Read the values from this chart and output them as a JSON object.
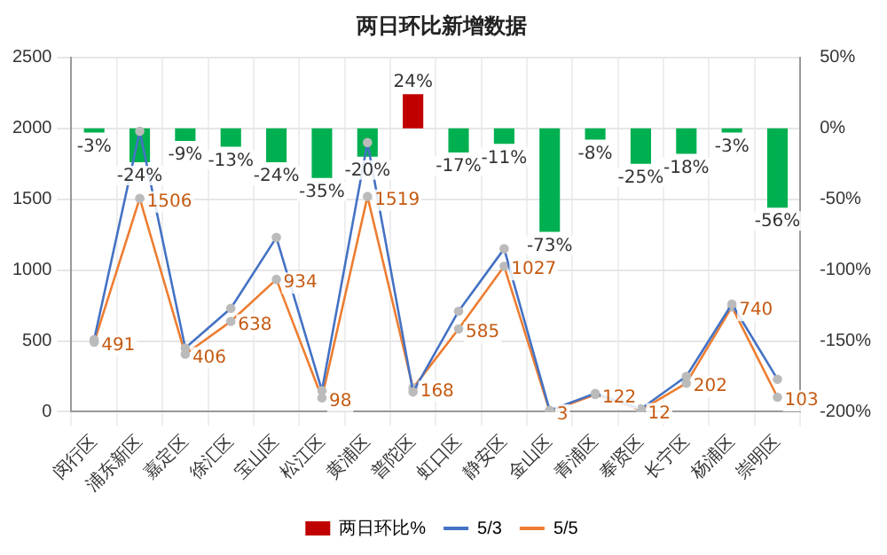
{
  "chart_data": {
    "type": "bar",
    "title": "两日环比新增数据",
    "categories": [
      "闵行区",
      "浦东新区",
      "嘉定区",
      "徐汇区",
      "宝山区",
      "松江区",
      "黄浦区",
      "普陀区",
      "虹口区",
      "静安区",
      "金山区",
      "青浦区",
      "奉贤区",
      "长宁区",
      "杨浦区",
      "崇明区"
    ],
    "series": [
      {
        "axis": "y2",
        "name": "两日环比%",
        "color": "#c00000",
        "colors": [
          "#00b050",
          "#00b050",
          "#00b050",
          "#00b050",
          "#00b050",
          "#00b050",
          "#00b050",
          "#c00000",
          "#00b050",
          "#00b050",
          "#00b050",
          "#00b050",
          "#00b050",
          "#00b050",
          "#00b050",
          "#00b050"
        ],
        "values": [
          -3,
          -24,
          -9,
          -13,
          -24,
          -35,
          -20,
          24,
          -17,
          -11,
          -73,
          -8,
          -25,
          -18,
          -3,
          -56
        ],
        "value_labels": [
          "-3%",
          "-24%",
          "-9%",
          "-13%",
          "-24%",
          "-35%",
          "-20%",
          "24%",
          "-17%",
          "-11%",
          "-73%",
          "-8%",
          "-25%",
          "-18%",
          "-3%",
          "-56%"
        ]
      },
      {
        "type": "line",
        "name": "5/3",
        "color": "#4472c4",
        "values": [
          510,
          1980,
          450,
          730,
          1230,
          150,
          1900,
          140,
          710,
          1150,
          10,
          130,
          20,
          250,
          760,
          230
        ]
      },
      {
        "type": "line",
        "name": "5/5",
        "color": "#ed7d31",
        "values": [
          491,
          1506,
          406,
          638,
          934,
          98,
          1519,
          168,
          585,
          1027,
          3,
          122,
          12,
          202,
          740,
          103
        ],
        "value_labels": [
          "491",
          "1506",
          "406",
          "638",
          "934",
          "98",
          "1519",
          "168",
          "585",
          "1027",
          "3",
          "122",
          "12",
          "202",
          "740",
          "103"
        ]
      }
    ],
    "ylim": [
      0,
      2500
    ],
    "yticks": [
      0,
      500,
      1000,
      1500,
      2000,
      2500
    ],
    "y2lim": [
      -200,
      50
    ],
    "y2ticks": [
      {
        "value": -200,
        "label": "-200%"
      },
      {
        "value": -150,
        "label": "-150%"
      },
      {
        "value": -100,
        "label": "-100%"
      },
      {
        "value": -50,
        "label": "-50%"
      },
      {
        "value": 0,
        "label": "0%"
      },
      {
        "value": 50,
        "label": "50%"
      }
    ],
    "grid": true,
    "legend": "bottom",
    "marker": "circle"
  }
}
